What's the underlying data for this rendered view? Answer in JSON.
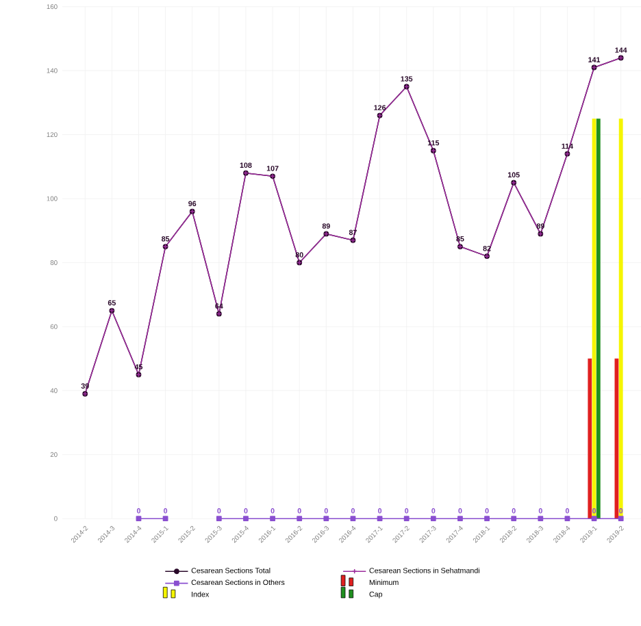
{
  "chart_data": {
    "type": "line",
    "categories": [
      "2014-2",
      "2014-3",
      "2014-4",
      "2015-1",
      "2015-2",
      "2015-3",
      "2015-4",
      "2016-1",
      "2016-2",
      "2016-3",
      "2016-4",
      "2017-1",
      "2017-2",
      "2017-3",
      "2017-4",
      "2018-1",
      "2018-2",
      "2018-3",
      "2018-4",
      "2019-1",
      "2019-2"
    ],
    "series": [
      {
        "name": "Cesarean Sections Total",
        "color": "#2a0a2a",
        "marker": "circle",
        "data_labels": true,
        "values": [
          39,
          65,
          45,
          85,
          96,
          64,
          108,
          107,
          80,
          89,
          87,
          126,
          135,
          115,
          85,
          82,
          105,
          89,
          114,
          141,
          144
        ]
      },
      {
        "name": "Cesarean Sections in Sehatmandi",
        "color": "#9b2c9b",
        "marker": "cross",
        "values": [
          39,
          65,
          45,
          85,
          96,
          64,
          108,
          107,
          80,
          89,
          87,
          126,
          135,
          115,
          85,
          82,
          105,
          89,
          114,
          141,
          144
        ]
      },
      {
        "name": "Cesarean Sections in Others",
        "color": "#8a4fd0",
        "marker": "square",
        "data_labels": true,
        "values": [
          null,
          null,
          0,
          0,
          null,
          0,
          0,
          0,
          0,
          0,
          0,
          0,
          0,
          0,
          0,
          0,
          0,
          0,
          0,
          0,
          0
        ]
      },
      {
        "name": "Minimum",
        "type": "bar",
        "color": "#e02020",
        "values": [
          null,
          null,
          null,
          null,
          null,
          null,
          null,
          null,
          null,
          null,
          null,
          null,
          null,
          null,
          null,
          null,
          null,
          null,
          null,
          50,
          50
        ]
      },
      {
        "name": "Index",
        "type": "bar",
        "color": "#f5f500",
        "values": [
          null,
          null,
          null,
          null,
          null,
          null,
          null,
          null,
          null,
          null,
          null,
          null,
          null,
          null,
          null,
          null,
          null,
          null,
          null,
          125,
          125
        ]
      },
      {
        "name": "Cap",
        "type": "bar",
        "color": "#1f8f1f",
        "values": [
          null,
          null,
          null,
          null,
          null,
          null,
          null,
          null,
          null,
          null,
          null,
          null,
          null,
          null,
          null,
          null,
          null,
          null,
          null,
          125,
          null
        ]
      }
    ],
    "ylim": [
      0,
      160
    ],
    "yticks": [
      0,
      20,
      40,
      60,
      80,
      100,
      120,
      140,
      160
    ],
    "grid": true,
    "legend": "bottom"
  }
}
